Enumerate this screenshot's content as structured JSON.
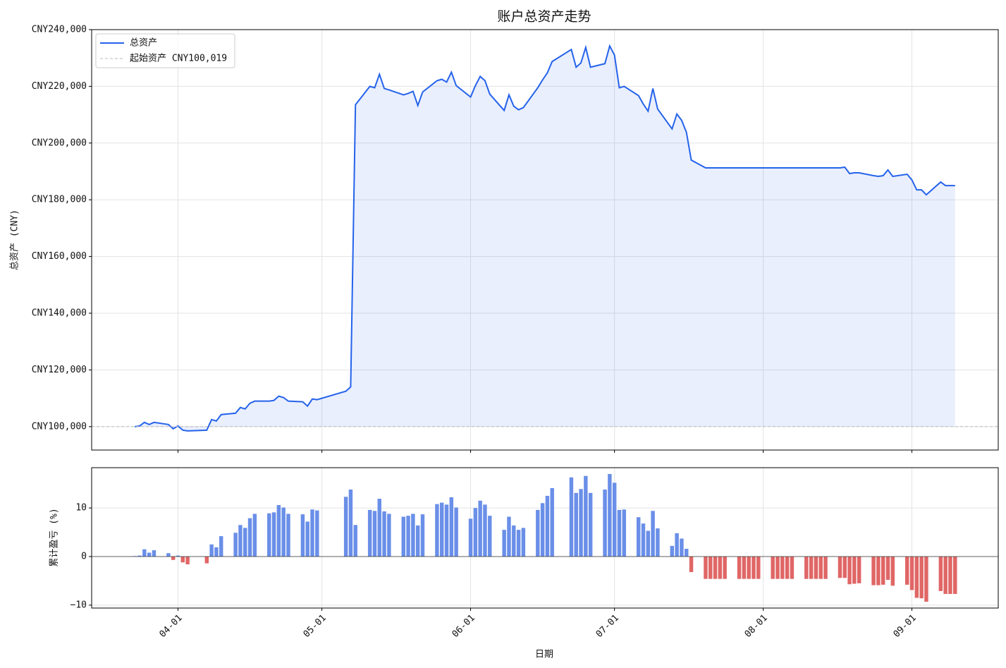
{
  "chart_data": [
    {
      "type": "line",
      "title": "账户总资产走势",
      "ylabel": "总资产 (CNY)",
      "x": [
        "03-23",
        "03-24",
        "03-25",
        "03-26",
        "03-27",
        "03-30",
        "03-31",
        "04-01",
        "04-02",
        "04-03",
        "04-07",
        "04-08",
        "04-09",
        "04-10",
        "04-13",
        "04-14",
        "04-15",
        "04-16",
        "04-17",
        "04-20",
        "04-21",
        "04-22",
        "04-23",
        "04-24",
        "04-27",
        "04-28",
        "04-29",
        "04-30",
        "05-06",
        "05-07",
        "05-08",
        "05-11",
        "05-12",
        "05-13",
        "05-14",
        "05-15",
        "05-18",
        "05-19",
        "05-20",
        "05-21",
        "05-22",
        "05-25",
        "05-26",
        "05-27",
        "05-28",
        "05-29",
        "06-01",
        "06-02",
        "06-03",
        "06-04",
        "06-05",
        "06-08",
        "06-09",
        "06-10",
        "06-11",
        "06-12",
        "06-15",
        "06-16",
        "06-17",
        "06-18",
        "06-22",
        "06-23",
        "06-24",
        "06-25",
        "06-26",
        "06-29",
        "06-30",
        "07-01",
        "07-02",
        "07-03",
        "07-06",
        "07-07",
        "07-08",
        "07-09",
        "07-10",
        "07-13",
        "07-14",
        "07-15",
        "07-16",
        "07-17",
        "07-20",
        "08-14",
        "08-17",
        "08-18",
        "08-19",
        "08-20",
        "08-21",
        "08-24",
        "08-25",
        "08-26",
        "08-27",
        "08-28",
        "08-31",
        "09-01",
        "09-02",
        "09-03",
        "09-04",
        "09-07",
        "09-08",
        "09-09",
        "09-10"
      ],
      "series": [
        {
          "name": "总资产",
          "color": "#2563eb",
          "values": [
            100000,
            100250,
            101500,
            100750,
            101500,
            100750,
            99250,
            100250,
            98750,
            98500,
            98750,
            102500,
            102000,
            104250,
            104750,
            106750,
            106250,
            108250,
            109000,
            109000,
            109250,
            110750,
            110250,
            109000,
            108750,
            107250,
            109750,
            109500,
            112500,
            114000,
            213500,
            220000,
            219500,
            224250,
            219250,
            218750,
            217000,
            217500,
            218250,
            213250,
            218000,
            222000,
            222500,
            221500,
            225000,
            220250,
            216250,
            220250,
            223500,
            222000,
            217250,
            211500,
            217000,
            213000,
            211750,
            212500,
            219500,
            222250,
            224750,
            228750,
            233000,
            226750,
            228250,
            233750,
            226750,
            228000,
            234250,
            231000,
            219500,
            220000,
            216750,
            213750,
            211250,
            219250,
            212000,
            205000,
            210250,
            208000,
            203750,
            194000,
            191250,
            191250,
            191250,
            191500,
            189250,
            189500,
            189500,
            188500,
            188250,
            188500,
            190500,
            188250,
            189000,
            187000,
            183500,
            183500,
            181750,
            186250,
            185000,
            185000,
            185000
          ]
        }
      ],
      "reference_line": {
        "name": "起始资产 CNY100,019",
        "value": 100019,
        "color": "#bbbbbb"
      },
      "fill": true,
      "legend": "upper left",
      "grid": true,
      "xlim": [
        "03-14",
        "09-19"
      ],
      "xticks": [
        "04-01",
        "05-01",
        "06-01",
        "07-01",
        "08-01",
        "09-01"
      ],
      "xtick_labels": false,
      "ylim": [
        91750,
        240000
      ],
      "yticks": [
        {
          "value": 100000,
          "label": "CNY100,000"
        },
        {
          "value": 120000,
          "label": "CNY120,000"
        },
        {
          "value": 140000,
          "label": "CNY140,000"
        },
        {
          "value": 160000,
          "label": "CNY160,000"
        },
        {
          "value": 180000,
          "label": "CNY180,000"
        },
        {
          "value": 200000,
          "label": "CNY200,000"
        },
        {
          "value": 220000,
          "label": "CNY220,000"
        },
        {
          "value": 240000,
          "label": "CNY240,000"
        }
      ]
    },
    {
      "type": "bar",
      "ylabel": "累计盈亏 (%)",
      "xlabel": "日期",
      "x": [
        "03-23",
        "03-24",
        "03-25",
        "03-26",
        "03-27",
        "03-30",
        "03-31",
        "04-01",
        "04-02",
        "04-03",
        "04-07",
        "04-08",
        "04-09",
        "04-10",
        "04-13",
        "04-14",
        "04-15",
        "04-16",
        "04-17",
        "04-20",
        "04-21",
        "04-22",
        "04-23",
        "04-24",
        "04-27",
        "04-28",
        "04-29",
        "04-30",
        "05-06",
        "05-07",
        "05-08",
        "05-11",
        "05-12",
        "05-13",
        "05-14",
        "05-15",
        "05-18",
        "05-19",
        "05-20",
        "05-21",
        "05-22",
        "05-25",
        "05-26",
        "05-27",
        "05-28",
        "05-29",
        "06-01",
        "06-02",
        "06-03",
        "06-04",
        "06-05",
        "06-08",
        "06-09",
        "06-10",
        "06-11",
        "06-12",
        "06-15",
        "06-16",
        "06-17",
        "06-18",
        "06-22",
        "06-23",
        "06-24",
        "06-25",
        "06-26",
        "06-29",
        "06-30",
        "07-01",
        "07-02",
        "07-03",
        "07-06",
        "07-07",
        "07-08",
        "07-09",
        "07-10",
        "07-13",
        "07-14",
        "07-15",
        "07-16",
        "07-17",
        "07-20",
        "07-21",
        "07-22",
        "07-23",
        "07-24",
        "07-27",
        "07-28",
        "07-29",
        "07-30",
        "07-31",
        "08-03",
        "08-04",
        "08-05",
        "08-06",
        "08-07",
        "08-10",
        "08-11",
        "08-12",
        "08-13",
        "08-14",
        "08-17",
        "08-18",
        "08-19",
        "08-20",
        "08-21",
        "08-24",
        "08-25",
        "08-26",
        "08-27",
        "08-28",
        "08-31",
        "09-01",
        "09-02",
        "09-03",
        "09-04",
        "09-07",
        "09-08",
        "09-09",
        "09-10"
      ],
      "values": [
        0.1,
        0.2,
        1.5,
        0.8,
        1.3,
        0.7,
        -0.7,
        0.2,
        -1.2,
        -1.6,
        -1.4,
        2.5,
        1.9,
        4.2,
        4.9,
        6.5,
        5.9,
        7.9,
        8.8,
        8.9,
        9.1,
        10.6,
        10.1,
        8.8,
        8.7,
        7.2,
        9.7,
        9.5,
        12.3,
        13.8,
        6.5,
        9.6,
        9.4,
        11.9,
        9.3,
        8.8,
        8.2,
        8.4,
        8.8,
        6.4,
        8.7,
        10.8,
        11.1,
        10.7,
        12.2,
        10.1,
        7.8,
        10.0,
        11.5,
        10.7,
        8.4,
        5.5,
        8.2,
        6.4,
        5.5,
        5.9,
        9.6,
        11.0,
        12.5,
        14.1,
        16.3,
        13.1,
        13.9,
        16.6,
        13.1,
        13.8,
        17.0,
        15.2,
        9.6,
        9.7,
        8.1,
        6.8,
        5.3,
        9.4,
        5.8,
        2.2,
        4.8,
        3.7,
        1.6,
        -3.2,
        -4.6,
        -4.6,
        -4.6,
        -4.6,
        -4.6,
        -4.6,
        -4.6,
        -4.6,
        -4.6,
        -4.6,
        -4.6,
        -4.6,
        -4.6,
        -4.6,
        -4.6,
        -4.6,
        -4.6,
        -4.6,
        -4.6,
        -4.6,
        -4.4,
        -4.4,
        -5.7,
        -5.6,
        -5.5,
        -5.9,
        -5.9,
        -5.8,
        -4.8,
        -6.0,
        -5.8,
        -6.9,
        -8.5,
        -8.6,
        -9.3,
        -7.1,
        -7.7,
        -7.7,
        -7.7
      ],
      "positive_color": "#6a8fe8",
      "negative_color": "#e06666",
      "zero_line": true,
      "grid": true,
      "xlim": [
        "03-14",
        "09-19"
      ],
      "xticks": [
        "04-01",
        "05-01",
        "06-01",
        "07-01",
        "08-01",
        "09-01"
      ],
      "xtick_labels": true,
      "ylim": [
        -10.6,
        18.3
      ],
      "yticks": [
        {
          "value": -10,
          "label": "−10"
        },
        0,
        10
      ]
    }
  ]
}
